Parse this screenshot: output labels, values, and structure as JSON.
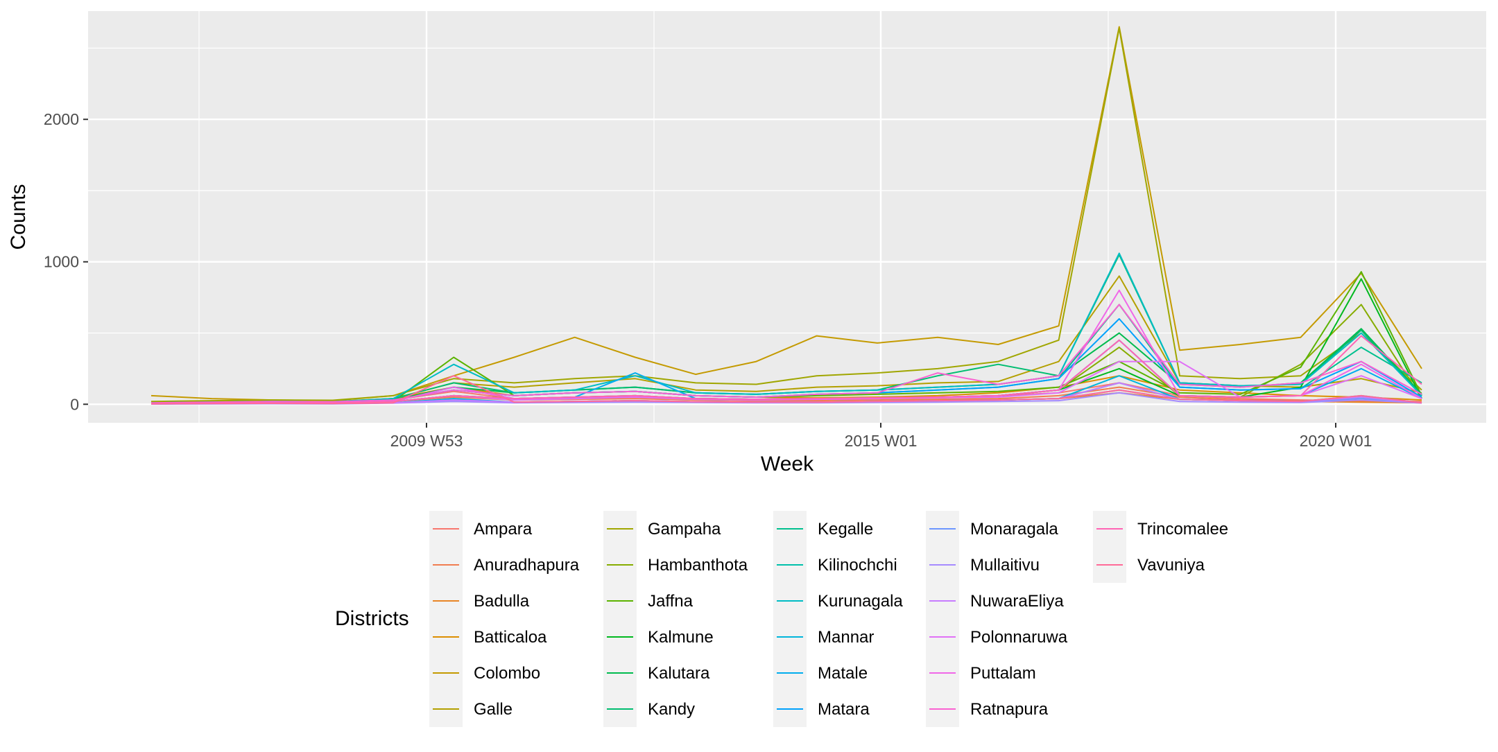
{
  "chart_data": {
    "type": "line",
    "title": "",
    "xlabel": "Week",
    "ylabel": "Counts",
    "x_ticks": [
      "2009 W53",
      "2015 W01",
      "2020 W01"
    ],
    "y_ticks": [
      "0",
      "1000",
      "2000"
    ],
    "x_axis_values": [
      "2006 W01",
      "2021 W26"
    ],
    "ylim": [
      -130,
      2760
    ],
    "legend": {
      "title": "Districts",
      "placement": "bottom",
      "ncol": 6
    },
    "panel_background": "#EBEBEB",
    "grid": true,
    "series": [
      {
        "name": "Ampara",
        "color": "#F8766D",
        "values": [
          5,
          10,
          15,
          12,
          30,
          90,
          40,
          45,
          50,
          40,
          35,
          30,
          40,
          45,
          60,
          80,
          150,
          60,
          40,
          30,
          25,
          20
        ]
      },
      {
        "name": "Anuradhapura",
        "color": "#F17D50",
        "values": [
          5,
          8,
          12,
          10,
          20,
          50,
          30,
          35,
          40,
          30,
          25,
          25,
          30,
          35,
          40,
          60,
          120,
          50,
          30,
          25,
          20,
          15
        ]
      },
      {
        "name": "Badulla",
        "color": "#E88526",
        "values": [
          3,
          5,
          8,
          6,
          10,
          30,
          15,
          20,
          25,
          18,
          15,
          15,
          20,
          25,
          30,
          40,
          80,
          35,
          25,
          20,
          15,
          10
        ]
      },
      {
        "name": "Batticaloa",
        "color": "#DC8E00",
        "values": [
          10,
          15,
          20,
          18,
          40,
          120,
          60,
          80,
          90,
          60,
          50,
          45,
          50,
          60,
          80,
          120,
          200,
          100,
          80,
          60,
          50,
          30
        ]
      },
      {
        "name": "Colombo",
        "color": "#C49A00",
        "values": [
          60,
          40,
          30,
          25,
          60,
          200,
          330,
          470,
          330,
          210,
          300,
          480,
          430,
          470,
          420,
          550,
          2650,
          380,
          420,
          470,
          920,
          250
        ]
      },
      {
        "name": "Galle",
        "color": "#B3A000",
        "values": [
          10,
          20,
          25,
          20,
          40,
          150,
          120,
          150,
          180,
          100,
          90,
          120,
          130,
          150,
          160,
          300,
          900,
          150,
          130,
          120,
          180,
          80
        ]
      },
      {
        "name": "Gampaha",
        "color": "#A0A600",
        "values": [
          20,
          25,
          30,
          28,
          60,
          180,
          150,
          180,
          200,
          150,
          140,
          200,
          220,
          250,
          300,
          450,
          2640,
          200,
          180,
          200,
          500,
          100
        ]
      },
      {
        "name": "Hambanthota",
        "color": "#86AC00",
        "values": [
          5,
          8,
          10,
          8,
          20,
          60,
          40,
          50,
          60,
          40,
          35,
          40,
          45,
          50,
          60,
          100,
          400,
          60,
          50,
          280,
          700,
          40
        ]
      },
      {
        "name": "Jaffna",
        "color": "#5BB300",
        "values": [
          5,
          8,
          10,
          8,
          20,
          330,
          60,
          80,
          90,
          60,
          50,
          60,
          70,
          80,
          90,
          120,
          300,
          80,
          70,
          260,
          930,
          60
        ]
      },
      {
        "name": "Kalmune",
        "color": "#00B81F",
        "values": [
          5,
          8,
          10,
          8,
          20,
          60,
          40,
          50,
          60,
          40,
          35,
          40,
          45,
          50,
          60,
          100,
          250,
          60,
          50,
          120,
          880,
          40
        ]
      },
      {
        "name": "Kalutara",
        "color": "#00BB4E",
        "values": [
          10,
          15,
          20,
          18,
          30,
          120,
          80,
          100,
          120,
          80,
          70,
          90,
          100,
          120,
          140,
          200,
          500,
          140,
          120,
          150,
          530,
          70
        ]
      },
      {
        "name": "Kandy",
        "color": "#00BD70",
        "values": [
          10,
          15,
          20,
          18,
          40,
          150,
          80,
          100,
          120,
          80,
          70,
          90,
          100,
          200,
          280,
          200,
          1050,
          150,
          130,
          140,
          520,
          60
        ]
      },
      {
        "name": "Kegalle",
        "color": "#00C08E",
        "values": [
          8,
          10,
          15,
          12,
          30,
          100,
          60,
          80,
          90,
          60,
          50,
          70,
          80,
          100,
          120,
          180,
          700,
          120,
          100,
          110,
          400,
          150
        ]
      },
      {
        "name": "Kilinochchi",
        "color": "#00C0AA",
        "values": [
          3,
          5,
          6,
          5,
          10,
          30,
          15,
          20,
          25,
          18,
          15,
          15,
          20,
          25,
          30,
          40,
          150,
          35,
          25,
          20,
          50,
          10
        ]
      },
      {
        "name": "Kurunagala",
        "color": "#00BCC4",
        "values": [
          10,
          15,
          20,
          18,
          40,
          280,
          80,
          100,
          200,
          80,
          70,
          90,
          100,
          120,
          140,
          200,
          1060,
          150,
          130,
          140,
          500,
          60
        ]
      },
      {
        "name": "Mannar",
        "color": "#00B6DB",
        "values": [
          3,
          5,
          6,
          5,
          10,
          40,
          15,
          20,
          25,
          18,
          15,
          15,
          20,
          25,
          30,
          40,
          200,
          35,
          25,
          20,
          60,
          10
        ]
      },
      {
        "name": "Matale",
        "color": "#00ADEE",
        "values": [
          5,
          8,
          10,
          8,
          20,
          120,
          40,
          50,
          220,
          40,
          35,
          40,
          45,
          50,
          60,
          100,
          450,
          60,
          50,
          60,
          250,
          40
        ]
      },
      {
        "name": "Matara",
        "color": "#00A1FC",
        "values": [
          8,
          10,
          15,
          12,
          30,
          100,
          60,
          80,
          90,
          60,
          50,
          70,
          80,
          100,
          120,
          180,
          600,
          120,
          100,
          110,
          300,
          50
        ]
      },
      {
        "name": "Monaragala",
        "color": "#6C96FF",
        "values": [
          3,
          5,
          6,
          5,
          10,
          30,
          15,
          20,
          25,
          18,
          15,
          15,
          20,
          25,
          30,
          40,
          100,
          35,
          25,
          20,
          40,
          10
        ]
      },
      {
        "name": "Mullaitivu",
        "color": "#A58AFF",
        "values": [
          2,
          3,
          4,
          3,
          8,
          20,
          10,
          12,
          15,
          12,
          10,
          10,
          12,
          15,
          20,
          25,
          80,
          20,
          15,
          12,
          30,
          8
        ]
      },
      {
        "name": "NuwaraEliya",
        "color": "#C77CFF",
        "values": [
          3,
          5,
          6,
          5,
          10,
          30,
          15,
          20,
          25,
          18,
          15,
          15,
          20,
          25,
          30,
          40,
          150,
          35,
          25,
          20,
          50,
          10
        ]
      },
      {
        "name": "Polonnaruwa",
        "color": "#E070F6",
        "values": [
          5,
          8,
          10,
          8,
          20,
          60,
          30,
          40,
          50,
          35,
          30,
          35,
          40,
          45,
          50,
          80,
          300,
          300,
          50,
          60,
          200,
          40
        ]
      },
      {
        "name": "Puttalam",
        "color": "#F066E8",
        "values": [
          5,
          8,
          10,
          8,
          20,
          120,
          40,
          50,
          60,
          40,
          35,
          40,
          45,
          50,
          60,
          100,
          800,
          60,
          50,
          60,
          280,
          40
        ]
      },
      {
        "name": "Ratnapura",
        "color": "#FA62D2",
        "values": [
          10,
          15,
          20,
          18,
          30,
          100,
          60,
          80,
          90,
          60,
          50,
          70,
          80,
          220,
          140,
          200,
          700,
          140,
          120,
          150,
          300,
          70
        ]
      },
      {
        "name": "Trincomalee",
        "color": "#FF64B4",
        "values": [
          5,
          8,
          10,
          8,
          20,
          60,
          40,
          50,
          60,
          40,
          35,
          40,
          45,
          50,
          60,
          100,
          450,
          60,
          50,
          60,
          480,
          140
        ]
      },
      {
        "name": "Vavuniya",
        "color": "#FF6A98",
        "values": [
          3,
          5,
          6,
          5,
          10,
          200,
          15,
          20,
          25,
          18,
          15,
          15,
          20,
          25,
          30,
          40,
          100,
          35,
          25,
          20,
          60,
          10
        ]
      }
    ]
  }
}
